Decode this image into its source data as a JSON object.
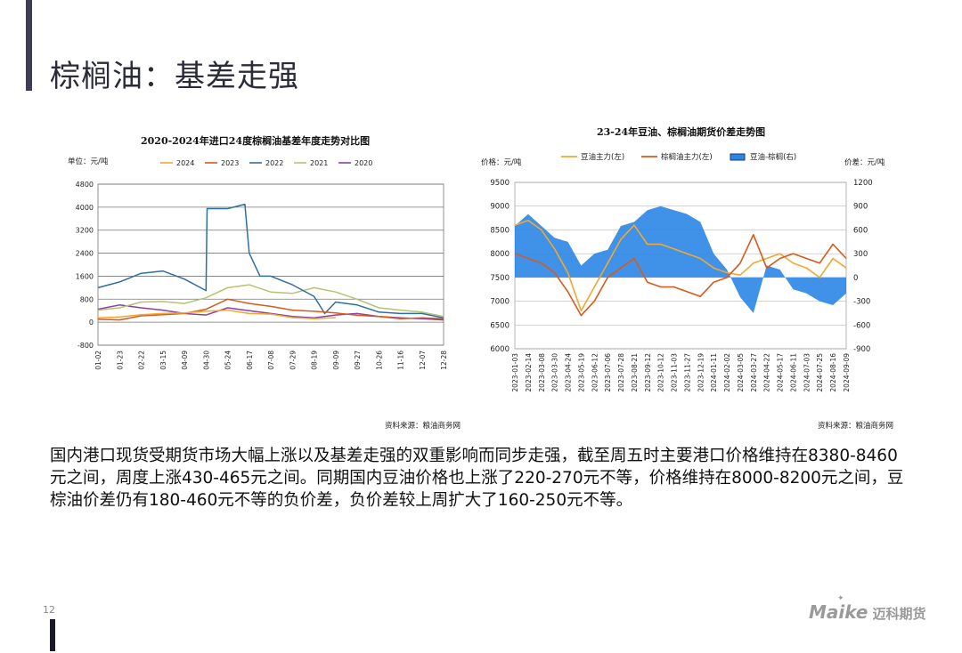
{
  "page": {
    "title": "棕榈油：基差走强",
    "page_number": "12",
    "body_text": "国内港口现货受期货市场大幅上涨以及基差走强的双重影响而同步走强，截至周五时主要港口价格维持在8380-8460元之间，周度上涨430-465元之间。同期国内豆油价格也上涨了220-270元不等，价格维持在8000-8200元之间，豆棕油价差仍有180-460元不等的负价差，负价差较上周扩大了160-250元不等。",
    "logo_text": "Maike",
    "logo_cn": "迈科期货"
  },
  "chart_data": [
    {
      "type": "line",
      "title": "2020-2024年进口24度棕榈油基差年度走势对比图",
      "unit_label": "单位：元/吨",
      "source": "资料来源：粮油商务网",
      "ylim": [
        -800,
        4800
      ],
      "yticks": [
        -800,
        0,
        800,
        1600,
        2400,
        3200,
        4000,
        4800
      ],
      "xticks": [
        "01-02",
        "01-23",
        "02-22",
        "03-15",
        "04-09",
        "04-30",
        "05-24",
        "06-17",
        "07-08",
        "07-29",
        "08-19",
        "09-09",
        "09-27",
        "10-26",
        "11-16",
        "12-07",
        "12-28"
      ],
      "grid": true,
      "legend_position": "top",
      "series": [
        {
          "name": "2024",
          "color": "#f0a830",
          "x": [
            0,
            1,
            2,
            3,
            4,
            5,
            6,
            7,
            8,
            9,
            10,
            11
          ],
          "values": [
            150,
            180,
            260,
            300,
            320,
            380,
            420,
            300,
            280,
            160,
            120,
            160
          ]
        },
        {
          "name": "2023",
          "color": "#d85a1a",
          "x": [
            0,
            1,
            2,
            3,
            4,
            5,
            6,
            7,
            8,
            9,
            10,
            11,
            12,
            13,
            14,
            15,
            16
          ],
          "values": [
            100,
            80,
            220,
            260,
            300,
            450,
            800,
            650,
            550,
            420,
            380,
            320,
            240,
            200,
            120,
            150,
            120
          ]
        },
        {
          "name": "2022",
          "color": "#2c6fa0",
          "x": [
            0,
            1,
            2,
            3,
            4,
            5,
            5.05,
            6,
            6.8,
            7,
            7.5,
            8,
            9,
            10,
            10.5,
            11,
            12,
            13,
            14,
            15,
            16
          ],
          "values": [
            1200,
            1400,
            1700,
            1780,
            1500,
            1100,
            3950,
            3950,
            4100,
            2400,
            1600,
            1600,
            1300,
            900,
            300,
            700,
            600,
            350,
            300,
            300,
            150
          ]
        },
        {
          "name": "2021",
          "color": "#b7c26e",
          "x": [
            0,
            1,
            2,
            3,
            4,
            5,
            6,
            7,
            8,
            9,
            10,
            11,
            12,
            13,
            14,
            15,
            16
          ],
          "values": [
            420,
            500,
            700,
            720,
            650,
            850,
            1200,
            1300,
            1050,
            1000,
            1200,
            1050,
            800,
            500,
            420,
            350,
            200
          ]
        },
        {
          "name": "2020",
          "color": "#8a3fa3",
          "x": [
            0,
            1,
            2,
            3,
            4,
            5,
            6,
            7,
            8,
            9,
            10,
            11,
            12,
            13,
            14,
            15,
            16
          ],
          "values": [
            450,
            600,
            500,
            420,
            300,
            250,
            500,
            400,
            300,
            200,
            150,
            250,
            300,
            200,
            150,
            120,
            80
          ]
        }
      ]
    },
    {
      "type": "line",
      "title": "23-24年豆油、棕榈油期货价差走势图",
      "left_unit": "价格：元/吨",
      "right_unit": "价差：元/吨",
      "source": "资料来源：粮油商务网",
      "ylim_left": [
        6000,
        9500
      ],
      "yticks_left": [
        6000,
        6500,
        7000,
        7500,
        8000,
        8500,
        9000,
        9500
      ],
      "ylim_right": [
        -900,
        1200
      ],
      "yticks_right": [
        -900,
        -600,
        -300,
        0,
        300,
        600,
        900,
        1200
      ],
      "xticks": [
        "2023-01-03",
        "2023-02-14",
        "2023-03-08",
        "2023-03-30",
        "2023-04-24",
        "2023-05-19",
        "2023-06-12",
        "2023-07-06",
        "2023-07-28",
        "2023-08-21",
        "2023-09-12",
        "2023-10-12",
        "2023-11-03",
        "2023-11-27",
        "2023-12-19",
        "2024-01-11",
        "2024-02-02",
        "2024-03-05",
        "2024-03-27",
        "2024-04-22",
        "2024-05-17",
        "2024-06-11",
        "2024-07-03",
        "2024-07-25",
        "2024-08-16",
        "2024-09-09"
      ],
      "grid": true,
      "legend_position": "top",
      "series": [
        {
          "name": "豆油主力(左)",
          "color": "#f0a830",
          "axis": "left",
          "x": [
            0,
            1,
            2,
            3,
            4,
            5,
            6,
            7,
            8,
            9,
            10,
            11,
            12,
            13,
            14,
            15,
            16,
            17,
            18,
            19,
            20,
            21,
            22,
            23,
            24,
            25
          ],
          "values": [
            8600,
            8700,
            8500,
            8100,
            7600,
            6800,
            7300,
            7800,
            8300,
            8600,
            8200,
            8200,
            8100,
            8000,
            7900,
            7700,
            7600,
            7550,
            7800,
            7900,
            8000,
            7800,
            7700,
            7500,
            7900,
            7700
          ]
        },
        {
          "name": "棕榈油主力(左)",
          "color": "#d85a1a",
          "axis": "left",
          "x": [
            0,
            1,
            2,
            3,
            4,
            5,
            6,
            7,
            8,
            9,
            10,
            11,
            12,
            13,
            14,
            15,
            16,
            17,
            18,
            19,
            20,
            21,
            22,
            23,
            24,
            25
          ],
          "values": [
            8000,
            7900,
            7800,
            7600,
            7200,
            6700,
            7000,
            7500,
            7700,
            7900,
            7400,
            7300,
            7300,
            7200,
            7100,
            7400,
            7500,
            7800,
            8400,
            7700,
            7900,
            8000,
            7900,
            7800,
            8200,
            7900
          ]
        },
        {
          "name": "豆油-棕榈(右)",
          "color": "#2b86e6",
          "axis": "right",
          "kind": "area",
          "x": [
            0,
            1,
            2,
            3,
            4,
            5,
            6,
            7,
            8,
            9,
            10,
            11,
            12,
            13,
            14,
            15,
            16,
            17,
            18,
            19,
            20,
            21,
            22,
            23,
            24,
            25
          ],
          "values": [
            650,
            800,
            650,
            500,
            450,
            150,
            300,
            350,
            650,
            700,
            850,
            900,
            850,
            800,
            700,
            300,
            100,
            -250,
            -450,
            150,
            100,
            -150,
            -200,
            -300,
            -350,
            -200
          ]
        }
      ]
    }
  ]
}
